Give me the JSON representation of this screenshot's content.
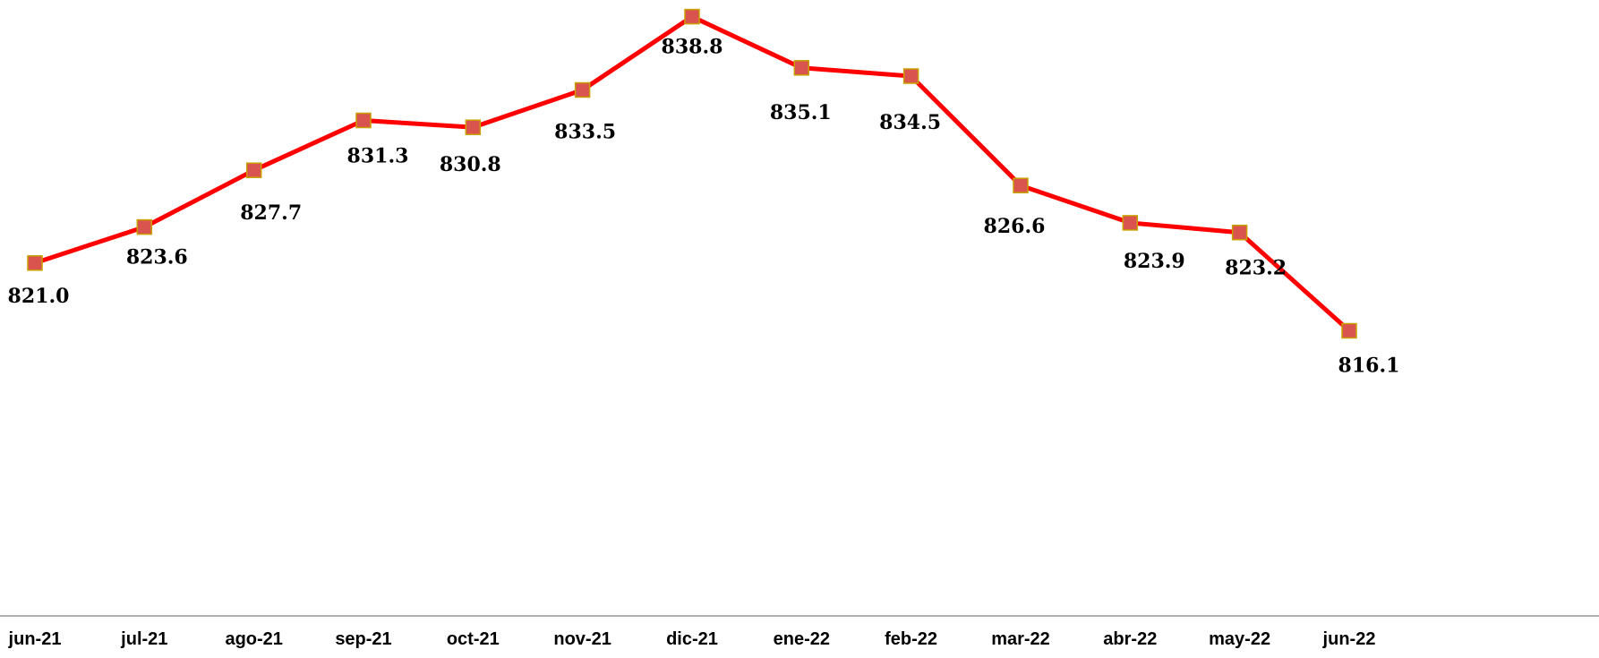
{
  "chart_data": {
    "type": "line",
    "title": "",
    "xlabel": "",
    "ylabel": "",
    "categories": [
      "jun-21",
      "jul-21",
      "ago-21",
      "sep-21",
      "oct-21",
      "nov-21",
      "dic-21",
      "ene-22",
      "feb-22",
      "mar-22",
      "abr-22",
      "may-22",
      "jun-22"
    ],
    "series": [
      {
        "values": [
          821.0,
          823.6,
          827.7,
          831.3,
          830.8,
          833.5,
          838.8,
          835.1,
          834.5,
          826.6,
          823.9,
          823.2,
          816.1
        ],
        "labels": [
          "821.0",
          "823.6",
          "827.7",
          "831.3",
          "830.8",
          "833.5",
          "838.8",
          "835.1",
          "834.5",
          "826.6",
          "823.9",
          "823.2",
          "816.1"
        ],
        "line_color": "#ff0000",
        "marker": "square",
        "marker_fill": "#d9534f",
        "marker_edge": "#c8a000"
      }
    ],
    "ylim": [
      795.5,
      840
    ],
    "grid": false,
    "legend": "none",
    "axis_line_color": "#999999"
  }
}
